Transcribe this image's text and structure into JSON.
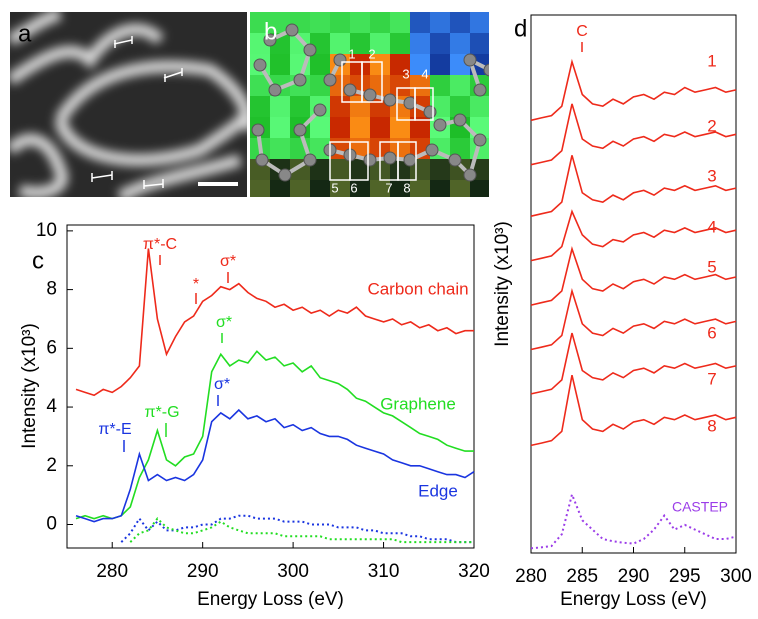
{
  "panels": {
    "labels": [
      "a",
      "b",
      "c",
      "d"
    ],
    "b_boxes": [
      "1",
      "2",
      "3",
      "4",
      "5",
      "6",
      "7",
      "8"
    ]
  },
  "chart_data": [
    {
      "type": "line",
      "ylabel": "Intensity (x10³)",
      "xlabel": "Energy Loss (eV)",
      "x": [
        276,
        277,
        278,
        279,
        280,
        281,
        282,
        283,
        284,
        285,
        286,
        287,
        288,
        289,
        290,
        291,
        292,
        293,
        294,
        295,
        296,
        297,
        298,
        299,
        300,
        301,
        302,
        303,
        304,
        305,
        306,
        307,
        308,
        309,
        310,
        311,
        312,
        313,
        314,
        315,
        316,
        317,
        318,
        319,
        320
      ],
      "xlim": [
        275,
        320
      ],
      "ylim": [
        -0.8,
        10.2
      ],
      "xticks": [
        280,
        290,
        300,
        310,
        320
      ],
      "yticks": [
        0,
        2,
        4,
        6,
        8,
        10
      ],
      "series": [
        {
          "name": "Carbon chain",
          "color": "#ee2a1b",
          "values": [
            4.6,
            4.5,
            4.4,
            4.6,
            4.5,
            4.7,
            5.0,
            5.4,
            9.4,
            7.0,
            5.8,
            6.4,
            6.9,
            7.1,
            7.6,
            7.8,
            8.1,
            8.0,
            8.2,
            7.9,
            7.7,
            7.6,
            7.4,
            7.5,
            7.3,
            7.4,
            7.2,
            7.3,
            7.1,
            7.3,
            7.2,
            7.4,
            7.1,
            7.0,
            6.9,
            7.0,
            6.8,
            6.9,
            6.7,
            6.8,
            6.6,
            6.7,
            6.5,
            6.6,
            6.6
          ]
        },
        {
          "name": "Graphene",
          "color": "#22dd22",
          "values": [
            0.2,
            0.3,
            0.2,
            0.3,
            0.2,
            0.3,
            0.6,
            1.6,
            2.2,
            3.2,
            2.2,
            2.0,
            2.3,
            2.4,
            3.0,
            5.2,
            5.8,
            5.4,
            5.6,
            5.5,
            5.9,
            5.6,
            5.7,
            5.4,
            5.5,
            5.2,
            5.4,
            5.0,
            4.9,
            4.8,
            4.6,
            4.3,
            4.2,
            4.0,
            3.8,
            3.7,
            3.5,
            3.3,
            3.1,
            3.0,
            2.9,
            2.7,
            2.6,
            2.5,
            2.5
          ]
        },
        {
          "name": "Edge",
          "color": "#1a35e0",
          "values": [
            0.3,
            0.2,
            0.1,
            0.2,
            0.2,
            0.3,
            1.2,
            2.4,
            1.5,
            1.7,
            1.5,
            1.6,
            1.5,
            1.7,
            2.2,
            3.5,
            3.8,
            3.6,
            3.9,
            3.6,
            3.7,
            3.5,
            3.6,
            3.3,
            3.4,
            3.2,
            3.3,
            3.1,
            3.0,
            3.0,
            2.9,
            2.7,
            2.6,
            2.5,
            2.4,
            2.2,
            2.1,
            2.0,
            2.0,
            1.9,
            1.8,
            1.7,
            1.7,
            1.6,
            1.8
          ]
        },
        {
          "color": "#1a35e0",
          "dash": true,
          "values": [
            null,
            null,
            null,
            null,
            null,
            -0.6,
            -0.3,
            0.2,
            -0.2,
            0.1,
            -0.2,
            -0.2,
            -0.1,
            -0.1,
            0.0,
            0.0,
            0.2,
            0.2,
            0.3,
            0.3,
            0.2,
            0.2,
            0.2,
            0.1,
            0.1,
            0.1,
            0.0,
            0.0,
            0.0,
            -0.1,
            -0.1,
            -0.1,
            -0.2,
            -0.2,
            -0.3,
            -0.3,
            -0.3,
            -0.4,
            -0.4,
            -0.5,
            -0.5,
            -0.5,
            -0.6,
            -0.6,
            -0.6
          ]
        },
        {
          "color": "#22dd22",
          "dash": true,
          "values": [
            null,
            null,
            null,
            null,
            null,
            null,
            -0.6,
            -0.3,
            -0.2,
            0.2,
            -0.1,
            -0.2,
            -0.3,
            -0.3,
            -0.2,
            -0.1,
            0.1,
            -0.1,
            -0.2,
            -0.3,
            -0.3,
            -0.3,
            -0.3,
            -0.4,
            -0.4,
            -0.4,
            -0.4,
            -0.4,
            -0.5,
            -0.5,
            -0.5,
            -0.5,
            -0.5,
            -0.5,
            -0.5,
            -0.5,
            -0.6,
            -0.6,
            -0.6,
            -0.6,
            -0.6,
            -0.6,
            -0.6,
            -0.6,
            -0.6
          ]
        }
      ],
      "annotations": [
        {
          "text": "π*-C",
          "color": "#ee2a1b"
        },
        {
          "text": "*",
          "color": "#ee2a1b"
        },
        {
          "text": "σ*",
          "color": "#ee2a1b"
        },
        {
          "text": "σ*",
          "color": "#22dd22"
        },
        {
          "text": "π*-G",
          "color": "#22dd22"
        },
        {
          "text": "π*-E",
          "color": "#1a35e0"
        },
        {
          "text": "σ*",
          "color": "#1a35e0"
        }
      ]
    },
    {
      "type": "line",
      "ylabel": "Intensity (x10³)",
      "xlabel": "Energy Loss (eV)",
      "x": [
        280,
        281,
        282,
        283,
        284,
        285,
        286,
        287,
        288,
        289,
        290,
        291,
        292,
        293,
        294,
        295,
        296,
        297,
        298,
        299,
        300
      ],
      "xlim": [
        280,
        300
      ],
      "ylim": [
        0,
        11.5
      ],
      "xticks": [
        280,
        285,
        290,
        295,
        300
      ],
      "series": [
        {
          "name": "1",
          "color": "#ee2a1b",
          "values": [
            9.25,
            9.3,
            9.35,
            9.55,
            10.5,
            9.8,
            9.6,
            9.55,
            9.7,
            9.6,
            9.75,
            9.8,
            9.7,
            9.85,
            9.8,
            9.95,
            9.85,
            9.9,
            9.95,
            9.85,
            9.9
          ]
        },
        {
          "name": "2",
          "color": "#ee2a1b",
          "values": [
            8.3,
            8.35,
            8.4,
            8.6,
            9.6,
            8.85,
            8.7,
            8.65,
            8.8,
            8.7,
            8.85,
            8.9,
            8.8,
            8.95,
            8.9,
            9.0,
            8.9,
            8.95,
            9.0,
            8.9,
            8.95
          ]
        },
        {
          "name": "3",
          "color": "#ee2a1b",
          "values": [
            7.2,
            7.25,
            7.3,
            7.5,
            8.5,
            7.7,
            7.55,
            7.5,
            7.65,
            7.55,
            7.7,
            7.75,
            7.65,
            7.8,
            7.75,
            7.85,
            7.75,
            7.8,
            7.85,
            7.75,
            7.8
          ]
        },
        {
          "name": "4",
          "color": "#ee2a1b",
          "values": [
            6.25,
            6.3,
            6.35,
            6.55,
            7.3,
            6.8,
            6.6,
            6.55,
            6.7,
            6.65,
            6.8,
            6.85,
            6.75,
            6.9,
            6.85,
            6.95,
            6.85,
            6.9,
            6.95,
            6.85,
            6.9
          ]
        },
        {
          "name": "5",
          "color": "#ee2a1b",
          "values": [
            5.3,
            5.35,
            5.4,
            5.6,
            6.5,
            5.85,
            5.65,
            5.6,
            5.75,
            5.65,
            5.8,
            5.85,
            5.75,
            5.9,
            5.85,
            5.95,
            5.85,
            5.9,
            5.95,
            5.85,
            5.9
          ]
        },
        {
          "name": "6",
          "color": "#ee2a1b",
          "values": [
            4.35,
            4.4,
            4.45,
            4.65,
            5.6,
            4.9,
            4.7,
            4.65,
            4.8,
            4.7,
            4.85,
            4.9,
            4.8,
            4.95,
            4.9,
            5.0,
            4.9,
            4.95,
            5.0,
            4.9,
            4.95
          ]
        },
        {
          "name": "7",
          "color": "#ee2a1b",
          "values": [
            3.4,
            3.45,
            3.5,
            3.7,
            4.7,
            3.9,
            3.75,
            3.7,
            3.85,
            3.75,
            3.9,
            3.95,
            3.85,
            4.0,
            3.95,
            4.05,
            3.95,
            4.0,
            4.05,
            3.95,
            4.0
          ]
        },
        {
          "name": "8",
          "color": "#ee2a1b",
          "values": [
            2.3,
            2.35,
            2.4,
            2.6,
            3.8,
            2.85,
            2.65,
            2.6,
            2.75,
            2.65,
            2.8,
            2.85,
            2.75,
            2.9,
            2.85,
            2.95,
            2.85,
            2.9,
            2.95,
            2.85,
            2.9
          ]
        },
        {
          "name": "CASTEP",
          "color": "#9b3de8",
          "dash": true,
          "values": [
            0.1,
            0.12,
            0.15,
            0.4,
            1.25,
            0.7,
            0.5,
            0.3,
            0.25,
            0.22,
            0.2,
            0.3,
            0.5,
            0.8,
            0.5,
            0.6,
            0.5,
            0.4,
            0.3,
            0.3,
            0.35
          ]
        }
      ],
      "annotations": [
        {
          "text": "C",
          "color": "#ee2a1b"
        }
      ]
    }
  ]
}
